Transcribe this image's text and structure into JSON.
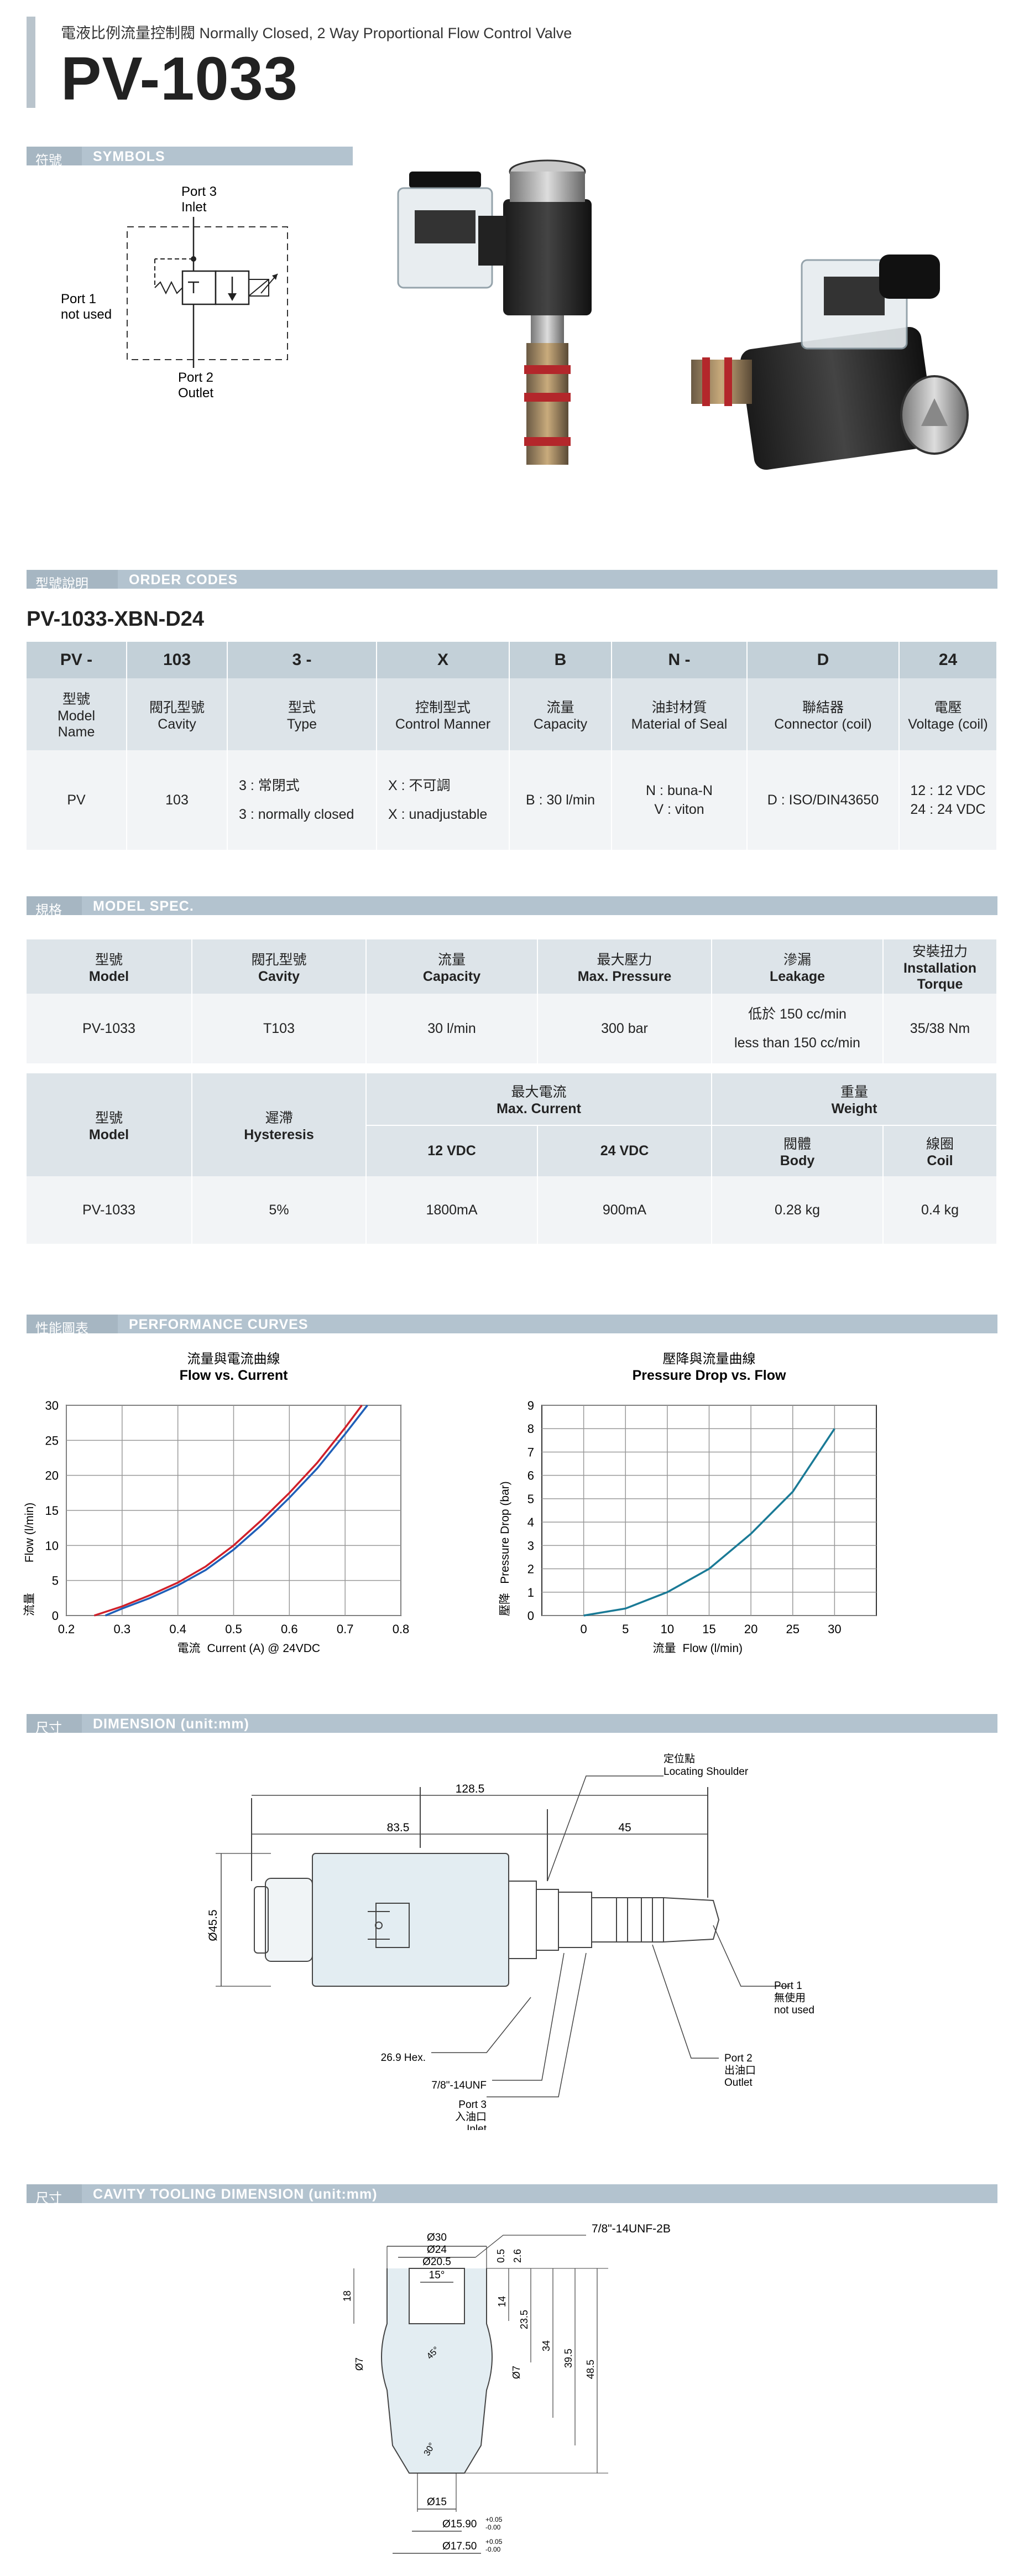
{
  "header": {
    "subtitle": "電液比例流量控制閥  Normally Closed, 2 Way Proportional Flow Control Valve",
    "title": "PV-1033"
  },
  "symbols": {
    "zh": "符號",
    "en": "SYMBOLS",
    "port3": "Port 3",
    "port3_sub": "Inlet",
    "port1": "Port 1",
    "port1_sub": "not used",
    "port2": "Port 2",
    "port2_sub": "Outlet"
  },
  "order_codes": {
    "zh": "型號說明",
    "en": "ORDER CODES",
    "code": "PV-1033-XBN-D24",
    "head": [
      "PV -",
      "103",
      "3 -",
      "X",
      "B",
      "N -",
      "D",
      "24"
    ],
    "labels": [
      [
        "型號",
        "Model",
        "Name"
      ],
      [
        "閥孔型號",
        "Cavity"
      ],
      [
        "型式",
        "Type"
      ],
      [
        "控制型式",
        "Control Manner"
      ],
      [
        "流量",
        "Capacity"
      ],
      [
        "油封材質",
        "Material of Seal"
      ],
      [
        "聯結器",
        "Connector (coil)"
      ],
      [
        "電壓",
        "Voltage (coil)"
      ]
    ],
    "values": [
      [
        "PV"
      ],
      [
        "103"
      ],
      [
        "3 : 常閉式",
        "3 : normally closed"
      ],
      [
        "X : 不可調",
        "X : unadjustable"
      ],
      [
        "B : 30 l/min"
      ],
      [
        "N : buna-N",
        "V : viton"
      ],
      [
        "D : ISO/DIN43650"
      ],
      [
        "12 : 12 VDC",
        "24 : 24 VDC"
      ]
    ]
  },
  "model_spec": {
    "zh": "規格",
    "en": "MODEL SPEC.",
    "t1_head": [
      [
        "型號",
        "Model"
      ],
      [
        "閥孔型號",
        "Cavity"
      ],
      [
        "流量",
        "Capacity"
      ],
      [
        "最大壓力",
        "Max. Pressure"
      ],
      [
        "滲漏",
        "Leakage"
      ],
      [
        "安裝扭力",
        "Installation Torque"
      ]
    ],
    "t1_row": [
      "PV-1033",
      "T103",
      "30 l/min",
      "300 bar",
      "低於 150 cc/min",
      "less than 150 cc/min",
      "35/38 Nm"
    ],
    "t2_head": {
      "model": [
        "型號",
        "Model"
      ],
      "hyst": [
        "遲滯",
        "Hysteresis"
      ],
      "current": [
        "最大電流",
        "Max. Current"
      ],
      "c12": "12 VDC",
      "c24": "24 VDC",
      "weight": [
        "重量",
        "Weight"
      ],
      "body": [
        "閥體",
        "Body"
      ],
      "coil": [
        "線圈",
        "Coil"
      ]
    },
    "t2_row": [
      "PV-1033",
      "5%",
      "1800mA",
      "900mA",
      "0.28 kg",
      "0.4 kg"
    ]
  },
  "performance": {
    "zh": "性能圖表",
    "en": "PERFORMANCE CURVES"
  },
  "chart_data": [
    {
      "type": "line",
      "title": "流量與電流曲線",
      "subtitle": "Flow vs. Current",
      "xlabel_zh": "電流",
      "xlabel": "Current (A)  @ 24VDC",
      "ylabel_zh": "流量",
      "ylabel": "Flow    (l/min)",
      "xlim": [
        0.2,
        0.8
      ],
      "ylim": [
        0,
        30
      ],
      "xticks": [
        "0.2",
        "0.3",
        "0.4",
        "0.5",
        "0.6",
        "0.7",
        "0.8"
      ],
      "yticks": [
        "0",
        "5",
        "10",
        "15",
        "20",
        "25",
        "30"
      ],
      "grid": true,
      "colors": [
        "#d0202a",
        "#1f5fb8"
      ],
      "series": [
        {
          "x": [
            0.25,
            0.3,
            0.35,
            0.4,
            0.45,
            0.5,
            0.55,
            0.6,
            0.65,
            0.7,
            0.73
          ],
          "values": [
            0,
            1.3,
            2.9,
            4.7,
            7.0,
            10.0,
            13.6,
            17.5,
            21.8,
            26.8,
            30
          ]
        },
        {
          "x": [
            0.27,
            0.3,
            0.35,
            0.4,
            0.45,
            0.5,
            0.55,
            0.6,
            0.65,
            0.7,
            0.74
          ],
          "values": [
            0,
            1.0,
            2.5,
            4.3,
            6.5,
            9.4,
            12.9,
            16.8,
            21.0,
            25.9,
            30
          ]
        }
      ]
    },
    {
      "type": "line",
      "title": "壓降與流量曲線",
      "subtitle": "Pressure Drop vs. Flow",
      "xlabel_zh": "流量",
      "xlabel": "Flow    (l/min)",
      "ylabel_zh": "壓降",
      "ylabel": "Pressure Drop   (bar)",
      "xlim": [
        -5,
        35
      ],
      "ylim": [
        0,
        9
      ],
      "xticks": [
        "0",
        "5",
        "10",
        "15",
        "20",
        "25",
        "30"
      ],
      "yticks": [
        "0",
        "1",
        "2",
        "3",
        "4",
        "5",
        "6",
        "7",
        "8",
        "9"
      ],
      "grid": true,
      "colors": [
        "#1a7a96"
      ],
      "series": [
        {
          "x": [
            0,
            5,
            10,
            15,
            20,
            25,
            30
          ],
          "values": [
            0,
            0.3,
            1.0,
            2.0,
            3.5,
            5.3,
            8.0
          ]
        }
      ]
    }
  ],
  "dimension": {
    "zh": "尺寸",
    "en": "DIMENSION (unit:mm)",
    "shoulder_zh": "定位點",
    "shoulder_en": "Locating Shoulder",
    "d_total": "128.5",
    "d_left": "83.5",
    "d_right": "45",
    "d_dia": "Ø45.5",
    "hex": "26.9 Hex.",
    "thread": "7/8\"-14UNF",
    "port3": [
      "Port 3",
      "入油口",
      "Inlet"
    ],
    "port2": [
      "Port 2",
      "出油口",
      "Outlet"
    ],
    "port1": [
      "Port 1",
      "無使用",
      "not used"
    ]
  },
  "cavity": {
    "zh": "尺寸",
    "en": "CAVITY TOOLING DIMENSION (unit:mm)",
    "d30": "Ø30",
    "d24": "Ø24",
    "d205": "Ø20.5",
    "a15": "15°",
    "thread": "7/8\"-14UNF-2B",
    "v05": "0.5",
    "v26": "2.6",
    "v14": "14",
    "v235": "23.5",
    "v34": "34",
    "v395": "39.5",
    "v485": "48.5",
    "v18": "18",
    "d7a": "Ø7",
    "d7b": "Ø7",
    "a45": "45°",
    "a30": "30°",
    "d15": "Ø15",
    "d1590": "Ø15.90",
    "d1750": "Ø17.50",
    "tol_up": "+0.05",
    "tol_dn": "-0.00"
  }
}
